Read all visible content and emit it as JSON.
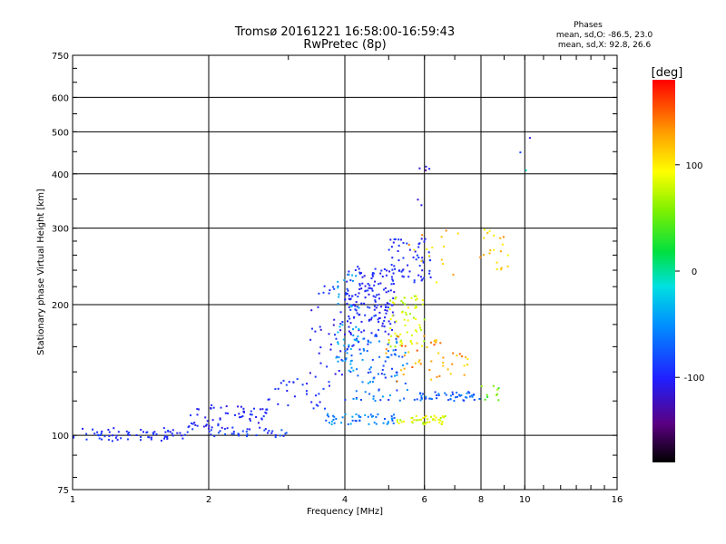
{
  "header": {
    "title": "Tromsø 20161221 16:58:00-16:59:43",
    "subtitle": "RwPretec (8p)"
  },
  "phase_box": {
    "title": "Phases",
    "line_o": "mean, sd,O: -86.5, 23.0",
    "line_x": "mean, sd,X:  92.8, 26.6"
  },
  "colorbar": {
    "unit_label": "[deg]",
    "range": [
      -180,
      180
    ],
    "ticks": [
      {
        "value": 100,
        "label": "100"
      },
      {
        "value": 0,
        "label": "0"
      },
      {
        "value": -100,
        "label": "-100"
      }
    ]
  },
  "chart_data": {
    "type": "scatter",
    "xlabel": "Frequency [MHz]",
    "ylabel": "Stationary phase Virtual Height [km]",
    "x_scale": "log",
    "y_scale": "log",
    "xlim": [
      1,
      16
    ],
    "ylim": [
      75,
      750
    ],
    "xticks": [
      {
        "value": 1,
        "label": "1"
      },
      {
        "value": 2,
        "label": "2"
      },
      {
        "value": 4,
        "label": "4"
      },
      {
        "value": 6,
        "label": "6"
      },
      {
        "value": 8,
        "label": "8"
      },
      {
        "value": 10,
        "label": "10"
      },
      {
        "value": 16,
        "label": "16"
      }
    ],
    "yticks": [
      {
        "value": 75,
        "label": "75"
      },
      {
        "value": 100,
        "label": "100"
      },
      {
        "value": 200,
        "label": "200"
      },
      {
        "value": 300,
        "label": "300"
      },
      {
        "value": 400,
        "label": "400"
      },
      {
        "value": 500,
        "label": "500"
      },
      {
        "value": 600,
        "label": "600"
      },
      {
        "value": 750,
        "label": "750"
      }
    ],
    "grid": true,
    "color_by": "phase [deg]",
    "point_groups": [
      {
        "x_range": [
          1.0,
          1.8
        ],
        "y_range": [
          97,
          104
        ],
        "phase_range": [
          -115,
          -95
        ],
        "count": 70
      },
      {
        "x_range": [
          1.8,
          2.7
        ],
        "y_range": [
          103,
          118
        ],
        "phase_range": [
          -125,
          -95
        ],
        "count": 70
      },
      {
        "x_range": [
          2.0,
          3.0
        ],
        "y_range": [
          99,
          103
        ],
        "phase_range": [
          -110,
          -80
        ],
        "count": 30
      },
      {
        "x_range": [
          2.7,
          3.7
        ],
        "y_range": [
          115,
          135
        ],
        "phase_range": [
          -120,
          -90
        ],
        "count": 30
      },
      {
        "x_range": [
          3.3,
          4.0
        ],
        "y_range": [
          135,
          200
        ],
        "phase_range": [
          -130,
          -100
        ],
        "count": 30
      },
      {
        "x_range": [
          3.5,
          3.9
        ],
        "y_range": [
          212,
          222
        ],
        "phase_range": [
          -110,
          -90
        ],
        "count": 8
      },
      {
        "x_range": [
          4.0,
          5.2
        ],
        "y_range": [
          170,
          245
        ],
        "phase_range": [
          -120,
          -95
        ],
        "count": 160
      },
      {
        "x_range": [
          4.0,
          5.5
        ],
        "y_range": [
          120,
          170
        ],
        "phase_range": [
          -110,
          -50
        ],
        "count": 100
      },
      {
        "x_range": [
          3.8,
          4.3
        ],
        "y_range": [
          140,
          240
        ],
        "phase_range": [
          -60,
          -30
        ],
        "count": 40
      },
      {
        "x_range": [
          3.6,
          5.2
        ],
        "y_range": [
          106,
          112
        ],
        "phase_range": [
          -90,
          -40
        ],
        "count": 50
      },
      {
        "x_range": [
          5.2,
          6.8
        ],
        "y_range": [
          106,
          111
        ],
        "phase_range": [
          60,
          110
        ],
        "count": 45
      },
      {
        "x_range": [
          5.7,
          8.0
        ],
        "y_range": [
          120,
          126
        ],
        "phase_range": [
          -100,
          -60
        ],
        "count": 50
      },
      {
        "x_range": [
          8.0,
          9.0
        ],
        "y_range": [
          120,
          130
        ],
        "phase_range": [
          20,
          70
        ],
        "count": 10
      },
      {
        "x_range": [
          5.0,
          6.0
        ],
        "y_range": [
          160,
          210
        ],
        "phase_range": [
          60,
          100
        ],
        "count": 60
      },
      {
        "x_range": [
          5.0,
          6.2
        ],
        "y_range": [
          225,
          285
        ],
        "phase_range": [
          -120,
          -95
        ],
        "count": 60
      },
      {
        "x_range": [
          4.8,
          6.6
        ],
        "y_range": [
          130,
          170
        ],
        "phase_range": [
          110,
          160
        ],
        "count": 35
      },
      {
        "x_range": [
          6.5,
          7.5
        ],
        "y_range": [
          135,
          155
        ],
        "phase_range": [
          100,
          150
        ],
        "count": 15
      },
      {
        "x_range": [
          5.5,
          7.2
        ],
        "y_range": [
          220,
          300
        ],
        "phase_range": [
          90,
          140
        ],
        "count": 15
      },
      {
        "x_range": [
          7.9,
          9.3
        ],
        "y_range": [
          240,
          300
        ],
        "phase_range": [
          90,
          140
        ],
        "count": 20
      },
      {
        "x_range": [
          5.8,
          6.2
        ],
        "y_range": [
          330,
          420
        ],
        "phase_range": [
          -150,
          -110
        ],
        "count": 6
      },
      {
        "x_range": [
          9.6,
          10.3
        ],
        "y_range": [
          395,
          500
        ],
        "phase_range": [
          -130,
          150
        ],
        "count": 3
      }
    ]
  }
}
